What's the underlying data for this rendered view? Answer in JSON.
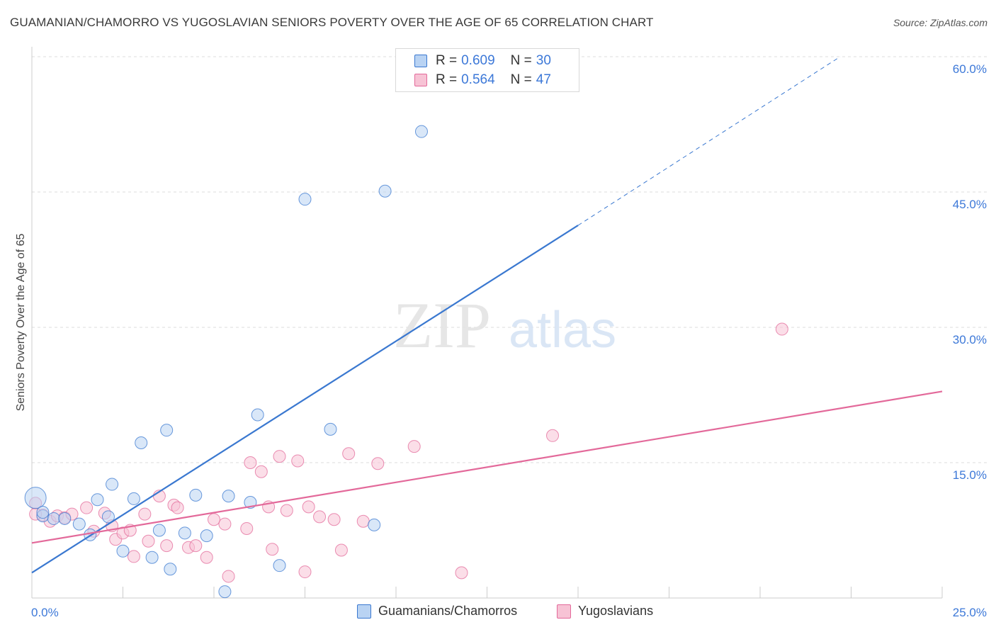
{
  "header": {
    "title": "GUAMANIAN/CHAMORRO VS YUGOSLAVIAN SENIORS POVERTY OVER THE AGE OF 65 CORRELATION CHART",
    "source": "Source: ZipAtlas.com"
  },
  "watermark": {
    "zip": "ZIP",
    "atlas": "atlas"
  },
  "colors": {
    "blue": "#3a78d0",
    "blue_fill": "#b9d3f3",
    "pink": "#e3699a",
    "pink_fill": "#f7c3d5",
    "axis_text": "#3c78d8",
    "grid": "#dddddd"
  },
  "legend": {
    "items": [
      {
        "r_label": "R = ",
        "r_value": "0.609",
        "n_label": "N = ",
        "n_value": "30"
      },
      {
        "r_label": "R = ",
        "r_value": "0.564",
        "n_label": "N = ",
        "n_value": "47"
      }
    ]
  },
  "chart_data": {
    "type": "scatter",
    "title": "GUAMANIAN/CHAMORRO VS YUGOSLAVIAN SENIORS POVERTY OVER THE AGE OF 65 CORRELATION CHART",
    "xlabel": "",
    "ylabel": "Seniors Poverty Over the Age of 65",
    "xlim": [
      0,
      25
    ],
    "ylim": [
      0,
      60
    ],
    "x_ticks": [
      "0.0%",
      "25.0%"
    ],
    "y_ticks": [
      {
        "value": 15,
        "label": "15.0%"
      },
      {
        "value": 30,
        "label": "30.0%"
      },
      {
        "value": 45,
        "label": "45.0%"
      },
      {
        "value": 60,
        "label": "60.0%"
      }
    ],
    "grid": true,
    "legend_position": "top-center",
    "series": [
      {
        "name": "Guamanians/Chamorros",
        "color": "#3a78d0",
        "fill": "#b9d3f3",
        "points": [
          [
            0.1,
            11.1
          ],
          [
            0.3,
            9.1
          ],
          [
            0.6,
            8.8
          ],
          [
            0.9,
            8.8
          ],
          [
            1.3,
            8.2
          ],
          [
            1.6,
            7.0
          ],
          [
            1.8,
            10.9
          ],
          [
            2.1,
            9.0
          ],
          [
            2.2,
            12.6
          ],
          [
            2.5,
            5.2
          ],
          [
            2.8,
            11.0
          ],
          [
            3.0,
            17.2
          ],
          [
            3.3,
            4.5
          ],
          [
            3.5,
            7.5
          ],
          [
            3.7,
            18.6
          ],
          [
            3.8,
            3.2
          ],
          [
            4.2,
            7.2
          ],
          [
            4.5,
            11.4
          ],
          [
            4.8,
            6.9
          ],
          [
            5.3,
            0.7
          ],
          [
            5.4,
            11.3
          ],
          [
            6.0,
            10.6
          ],
          [
            6.2,
            20.3
          ],
          [
            6.8,
            3.6
          ],
          [
            7.5,
            44.2
          ],
          [
            8.2,
            18.7
          ],
          [
            9.4,
            8.1
          ],
          [
            9.7,
            45.1
          ],
          [
            10.7,
            51.7
          ],
          [
            0.3,
            9.5
          ]
        ],
        "sizes": [
          1.7
        ]
      },
      {
        "name": "Yugoslavians",
        "color": "#e3699a",
        "fill": "#f7c3d5",
        "points": [
          [
            0.1,
            10.5
          ],
          [
            0.3,
            9.2
          ],
          [
            0.5,
            8.5
          ],
          [
            0.7,
            9.1
          ],
          [
            0.9,
            8.9
          ],
          [
            1.1,
            9.3
          ],
          [
            1.5,
            10.0
          ],
          [
            1.7,
            7.4
          ],
          [
            2.0,
            9.4
          ],
          [
            2.2,
            8.0
          ],
          [
            2.3,
            6.5
          ],
          [
            2.5,
            7.2
          ],
          [
            2.7,
            7.5
          ],
          [
            2.8,
            4.6
          ],
          [
            3.1,
            9.3
          ],
          [
            3.2,
            6.3
          ],
          [
            3.5,
            11.3
          ],
          [
            3.7,
            5.8
          ],
          [
            3.9,
            10.3
          ],
          [
            4.0,
            10.0
          ],
          [
            4.3,
            5.6
          ],
          [
            4.5,
            5.8
          ],
          [
            4.8,
            4.5
          ],
          [
            5.0,
            8.7
          ],
          [
            5.3,
            8.2
          ],
          [
            5.4,
            2.4
          ],
          [
            5.9,
            7.7
          ],
          [
            6.0,
            15.0
          ],
          [
            6.3,
            14.0
          ],
          [
            6.5,
            10.1
          ],
          [
            6.6,
            5.4
          ],
          [
            6.8,
            15.7
          ],
          [
            7.0,
            9.7
          ],
          [
            7.3,
            15.2
          ],
          [
            7.5,
            2.9
          ],
          [
            7.6,
            10.1
          ],
          [
            7.9,
            9.0
          ],
          [
            8.3,
            8.7
          ],
          [
            8.5,
            5.3
          ],
          [
            8.7,
            16.0
          ],
          [
            9.1,
            8.5
          ],
          [
            9.5,
            14.9
          ],
          [
            10.5,
            16.8
          ],
          [
            11.8,
            2.8
          ],
          [
            14.3,
            18.0
          ],
          [
            20.6,
            29.8
          ],
          [
            0.1,
            9.3
          ]
        ]
      }
    ],
    "trendlines": [
      {
        "series": "Guamanians/Chamorros",
        "x0": 0,
        "y0": 2.8,
        "x1": 15.0,
        "y1": 41.3,
        "dashed_to_x": 22.2,
        "dashed_to_y": 60.0
      },
      {
        "series": "Yugoslavians",
        "x0": 0,
        "y0": 6.1,
        "x1": 25.0,
        "y1": 22.9
      }
    ]
  }
}
